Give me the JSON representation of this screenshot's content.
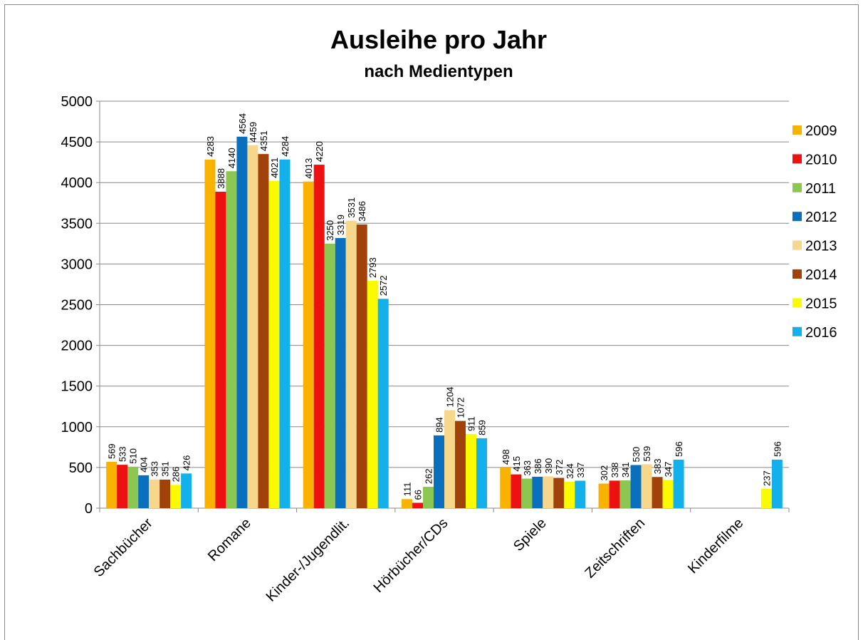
{
  "chart_data": {
    "type": "bar",
    "title": "Ausleihe pro Jahr",
    "subtitle": "nach Medientypen",
    "categories": [
      "Sachbücher",
      "Romane",
      "Kinder-/Jugendlit.",
      "Hörbücher/CDs",
      "Spiele",
      "Zeitschriften",
      "Kinderfilme"
    ],
    "series": [
      {
        "name": "2009",
        "color": "#f9b200",
        "values": [
          569,
          4283,
          4013,
          111,
          498,
          302,
          null
        ]
      },
      {
        "name": "2010",
        "color": "#ee1111",
        "values": [
          533,
          3888,
          4220,
          66,
          415,
          338,
          null
        ]
      },
      {
        "name": "2011",
        "color": "#8cc751",
        "values": [
          510,
          4140,
          3250,
          262,
          363,
          341,
          null
        ]
      },
      {
        "name": "2012",
        "color": "#0a6fbd",
        "values": [
          404,
          4564,
          3319,
          894,
          386,
          530,
          null
        ]
      },
      {
        "name": "2013",
        "color": "#f7d78c",
        "values": [
          353,
          4459,
          3531,
          1204,
          390,
          539,
          null
        ]
      },
      {
        "name": "2014",
        "color": "#a1420b",
        "values": [
          351,
          4351,
          3486,
          1072,
          372,
          383,
          null
        ]
      },
      {
        "name": "2015",
        "color": "#fafa00",
        "values": [
          286,
          4021,
          2793,
          911,
          324,
          347,
          237
        ]
      },
      {
        "name": "2016",
        "color": "#13b0eb",
        "values": [
          426,
          4284,
          2572,
          859,
          337,
          596,
          596
        ]
      }
    ],
    "ylim": [
      0,
      5000
    ],
    "yticks": [
      0,
      500,
      1000,
      1500,
      2000,
      2500,
      3000,
      3500,
      4000,
      4500,
      5000
    ],
    "grid": true,
    "legend": "right"
  }
}
